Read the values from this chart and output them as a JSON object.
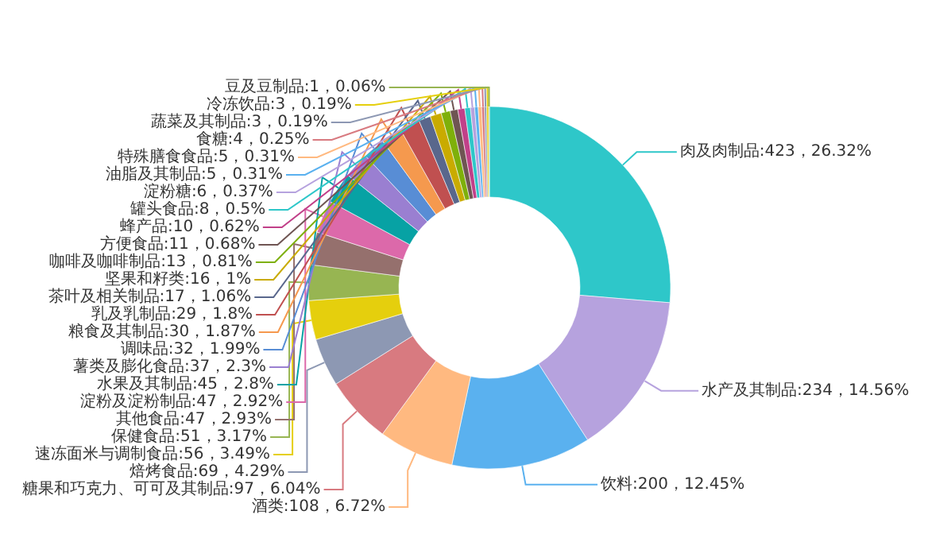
{
  "chart_data": {
    "type": "donut",
    "categories": [
      "肉及肉制品",
      "水产及其制品",
      "饮料",
      "酒类",
      "糖果和巧克力、可可及其制品",
      "焙烤食品",
      "速冻面米与调制食品",
      "保健食品",
      "其他食品",
      "淀粉及淀粉制品",
      "水果及其制品",
      "薯类及膨化食品",
      "调味品",
      "粮食及其制品",
      "乳及乳制品",
      "茶叶及相关制品",
      "坚果和籽类",
      "咖啡及咖啡制品",
      "方便食品",
      "蜂产品",
      "罐头食品",
      "淀粉糖",
      "油脂及其制品",
      "特殊膳食食品",
      "食糖",
      "蔬菜及其制品",
      "冷冻饮品",
      "豆及豆制品"
    ],
    "values": [
      423,
      234,
      200,
      108,
      97,
      69,
      56,
      51,
      47,
      47,
      45,
      37,
      32,
      30,
      29,
      17,
      16,
      13,
      11,
      10,
      8,
      6,
      5,
      5,
      4,
      3,
      3,
      1
    ],
    "value_labels": [
      "423，26.32%",
      "234，14.56%",
      "200，12.45%",
      "108，6.72%",
      "97，6.04%",
      "69，4.29%",
      "56，3.49%",
      "51，3.17%",
      "47，2.93%",
      "47，2.92%",
      "45，2.8%",
      "37，2.3%",
      "32，1.99%",
      "30，1.87%",
      "29，1.8%",
      "17，1.06%",
      "16，1%",
      "13，0.81%",
      "11，0.68%",
      "10，0.62%",
      "8，0.5%",
      "6，0.37%",
      "5，0.31%",
      "5，0.31%",
      "4，0.25%",
      "3，0.19%",
      "3，0.19%",
      "1，0.06%"
    ],
    "colors": [
      "#2ec7c9",
      "#b6a2de",
      "#5ab1ef",
      "#ffb980",
      "#d87a80",
      "#8d98b3",
      "#e5cf0d",
      "#97b552",
      "#95706d",
      "#dc69aa",
      "#07a2a4",
      "#9a7fd1",
      "#588dd5",
      "#f5994e",
      "#c05050",
      "#59678c",
      "#c9ab00",
      "#7eb00a",
      "#6f5553",
      "#c14089",
      "#2ec7c9",
      "#b6a2de",
      "#5ab1ef",
      "#ffb980",
      "#d87a80",
      "#8d98b3",
      "#e5cf0d",
      "#97b552"
    ]
  }
}
